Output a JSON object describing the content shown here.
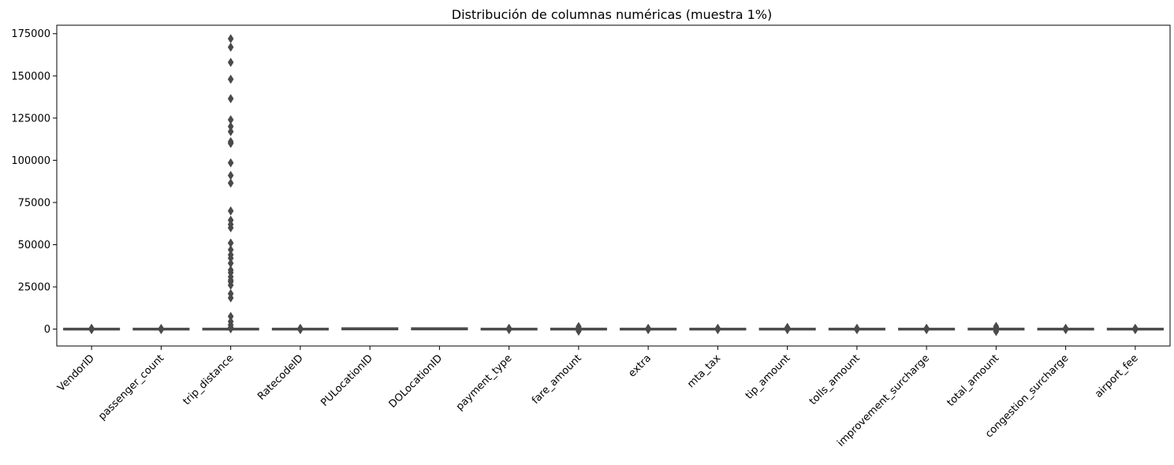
{
  "chart_data": {
    "type": "boxplot",
    "title": "Distribución de columnas numéricas (muestra 1%)",
    "xlabel": "",
    "ylabel": "",
    "ylim": [
      -10000,
      180000
    ],
    "yticks": [
      0,
      25000,
      50000,
      75000,
      100000,
      125000,
      150000,
      175000
    ],
    "ytick_labels": [
      "0",
      "25000",
      "50000",
      "75000",
      "100000",
      "125000",
      "150000",
      "175000"
    ],
    "grid": false,
    "box_color": "#4a4a4a",
    "categories": [
      "VendorID",
      "passenger_count",
      "trip_distance",
      "RatecodeID",
      "PULocationID",
      "DOLocationID",
      "payment_type",
      "fare_amount",
      "extra",
      "mta_tax",
      "tip_amount",
      "tolls_amount",
      "improvement_surcharge",
      "total_amount",
      "congestion_surcharge",
      "airport_fee"
    ],
    "boxes": [
      {
        "name": "VendorID",
        "q1": 1,
        "median": 2,
        "q3": 2,
        "whisker_low": 1,
        "whisker_high": 2,
        "outliers": [
          0,
          500,
          -300
        ]
      },
      {
        "name": "passenger_count",
        "q1": 1,
        "median": 1,
        "q3": 1,
        "whisker_low": 1,
        "whisker_high": 1,
        "outliers": [
          0,
          400,
          -300
        ]
      },
      {
        "name": "trip_distance",
        "q1": 1,
        "median": 2,
        "q3": 3,
        "whisker_low": 0,
        "whisker_high": 7,
        "outliers": [
          172000,
          167000,
          158000,
          148000,
          136500,
          124000,
          120000,
          117000,
          111000,
          110000,
          98500,
          91000,
          86500,
          70000,
          64500,
          62000,
          60000,
          51000,
          47000,
          44000,
          42000,
          39000,
          35000,
          33500,
          31000,
          29000,
          28000,
          26000,
          21000,
          18500,
          7500,
          4500,
          2500,
          1000,
          200
        ]
      },
      {
        "name": "RatecodeID",
        "q1": 1,
        "median": 1,
        "q3": 1,
        "whisker_low": 1,
        "whisker_high": 1,
        "outliers": [
          0,
          500,
          -300
        ]
      },
      {
        "name": "PULocationID",
        "q1": 114,
        "median": 162,
        "q3": 234,
        "whisker_low": 1,
        "whisker_high": 265,
        "outliers": []
      },
      {
        "name": "DOLocationID",
        "q1": 107,
        "median": 162,
        "q3": 234,
        "whisker_low": 1,
        "whisker_high": 265,
        "outliers": []
      },
      {
        "name": "payment_type",
        "q1": 1,
        "median": 1,
        "q3": 1,
        "whisker_low": 1,
        "whisker_high": 1,
        "outliers": [
          0,
          500,
          -300
        ]
      },
      {
        "name": "fare_amount",
        "q1": 9,
        "median": 13,
        "q3": 21,
        "whisker_low": 0,
        "whisker_high": 40,
        "outliers": [
          1500,
          800,
          300,
          -500,
          -1200
        ]
      },
      {
        "name": "extra",
        "q1": 0,
        "median": 1,
        "q3": 2.5,
        "whisker_low": 0,
        "whisker_high": 5,
        "outliers": [
          500,
          -300
        ]
      },
      {
        "name": "mta_tax",
        "q1": 0.5,
        "median": 0.5,
        "q3": 0.5,
        "whisker_low": 0.5,
        "whisker_high": 0.5,
        "outliers": [
          500,
          -300
        ]
      },
      {
        "name": "tip_amount",
        "q1": 1,
        "median": 3,
        "q3": 4,
        "whisker_low": 0,
        "whisker_high": 9,
        "outliers": [
          1000,
          500,
          -300
        ]
      },
      {
        "name": "tolls_amount",
        "q1": 0,
        "median": 0,
        "q3": 0,
        "whisker_low": 0,
        "whisker_high": 0,
        "outliers": [
          500,
          -300
        ]
      },
      {
        "name": "improvement_surcharge",
        "q1": 1,
        "median": 1,
        "q3": 1,
        "whisker_low": 1,
        "whisker_high": 1,
        "outliers": [
          500,
          -300
        ]
      },
      {
        "name": "total_amount",
        "q1": 15,
        "median": 21,
        "q3": 31,
        "whisker_low": 0,
        "whisker_high": 55,
        "outliers": [
          1600,
          900,
          300,
          -600,
          -1400
        ]
      },
      {
        "name": "congestion_surcharge",
        "q1": 2.5,
        "median": 2.5,
        "q3": 2.5,
        "whisker_low": 2.5,
        "whisker_high": 2.5,
        "outliers": [
          500,
          -300
        ]
      },
      {
        "name": "airport_fee",
        "q1": 0,
        "median": 0,
        "q3": 0,
        "whisker_low": 0,
        "whisker_high": 0,
        "outliers": [
          500,
          -300
        ]
      }
    ]
  }
}
